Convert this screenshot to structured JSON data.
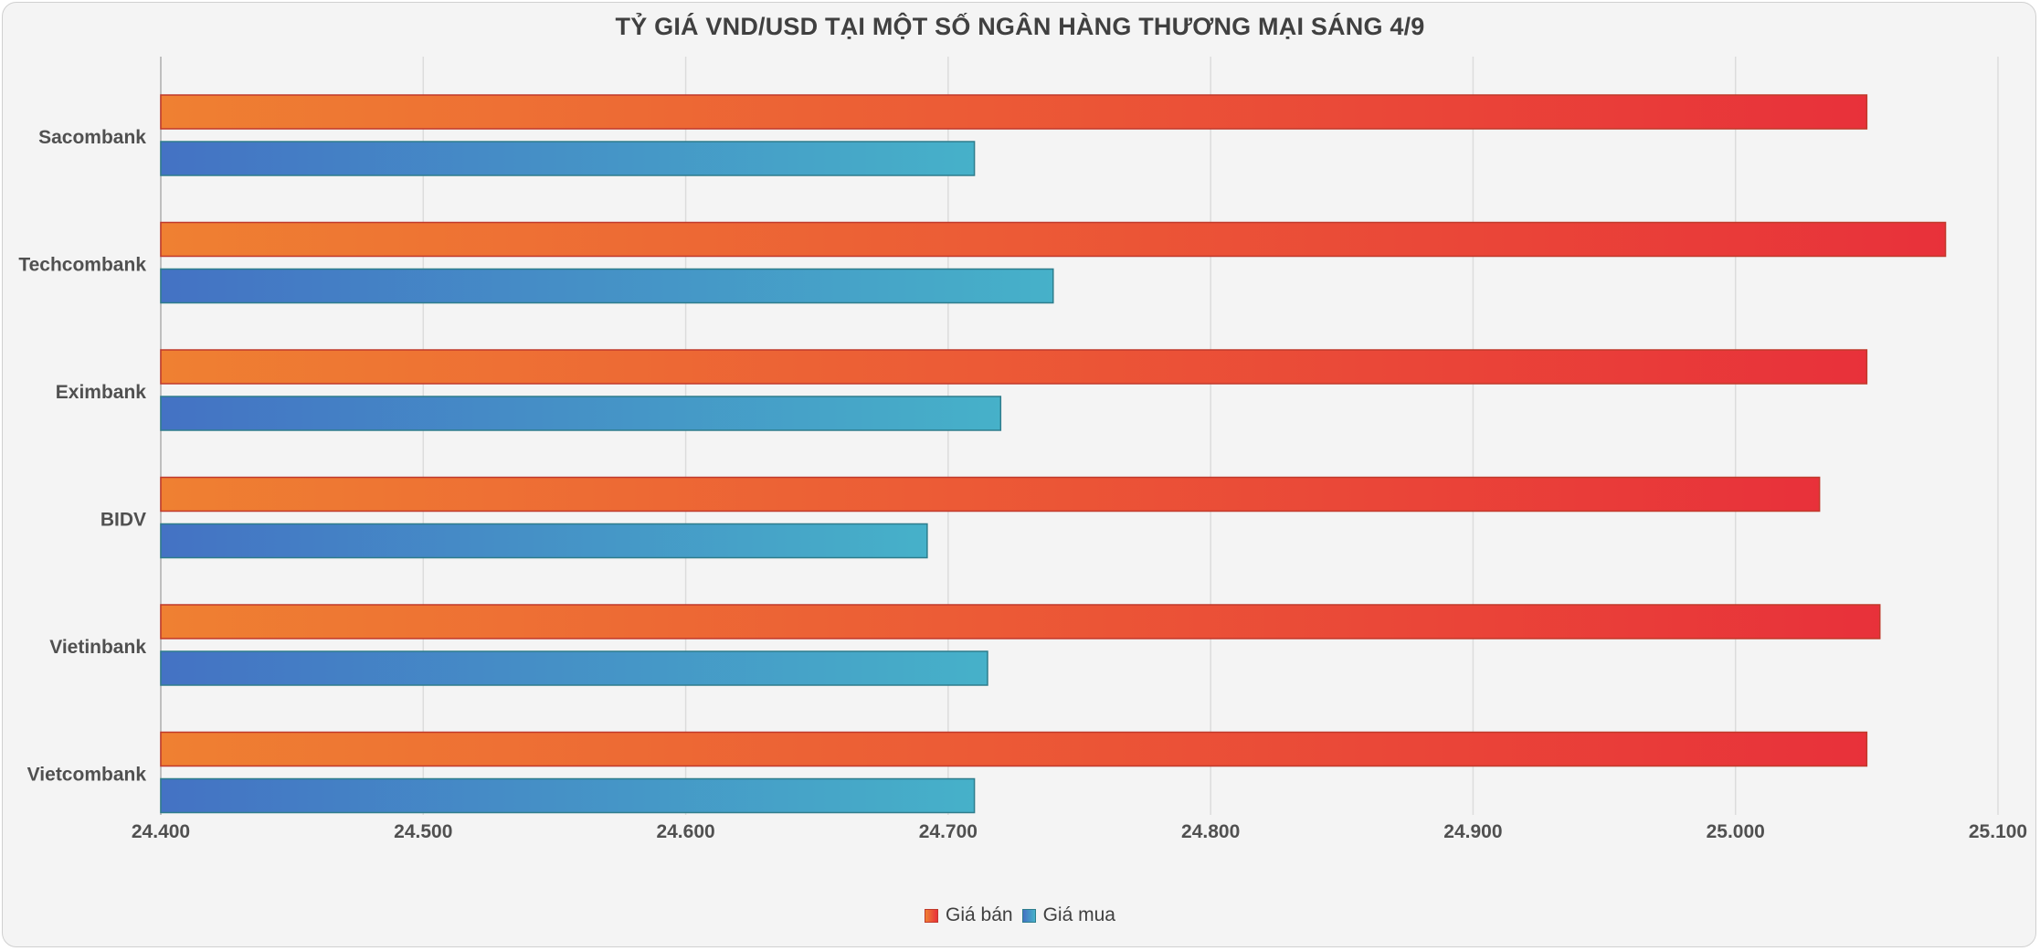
{
  "chart_data": {
    "type": "bar",
    "orientation": "horizontal",
    "title": "TỶ GIÁ VND/USD TẠI MỘT SỐ NGÂN HÀNG THƯƠNG MẠI SÁNG 4/9",
    "categories": [
      "Sacombank",
      "Techcombank",
      "Eximbank",
      "BIDV",
      "Vietinbank",
      "Vietcombank"
    ],
    "series": [
      {
        "name": "Giá bán",
        "values": [
          25050,
          25080,
          25050,
          25032,
          25055,
          25050
        ],
        "colors": {
          "start": "#ef8032",
          "end": "#e8313a",
          "stroke": "#c0392b"
        }
      },
      {
        "name": "Giá mua",
        "values": [
          24710,
          24740,
          24720,
          24692,
          24715,
          24710
        ],
        "colors": {
          "start": "#4472c4",
          "end": "#46b1c9",
          "stroke": "#2e7d8c"
        }
      }
    ],
    "xlim": [
      24400,
      25100
    ],
    "xticks": [
      24400,
      24500,
      24600,
      24700,
      24800,
      24900,
      25000,
      25100
    ],
    "xtick_labels": [
      "24.400",
      "24.500",
      "24.600",
      "24.700",
      "24.800",
      "24.900",
      "25.000",
      "25.100"
    ],
    "xlabel": "",
    "ylabel": "",
    "grid": true,
    "legend_position": "bottom"
  }
}
